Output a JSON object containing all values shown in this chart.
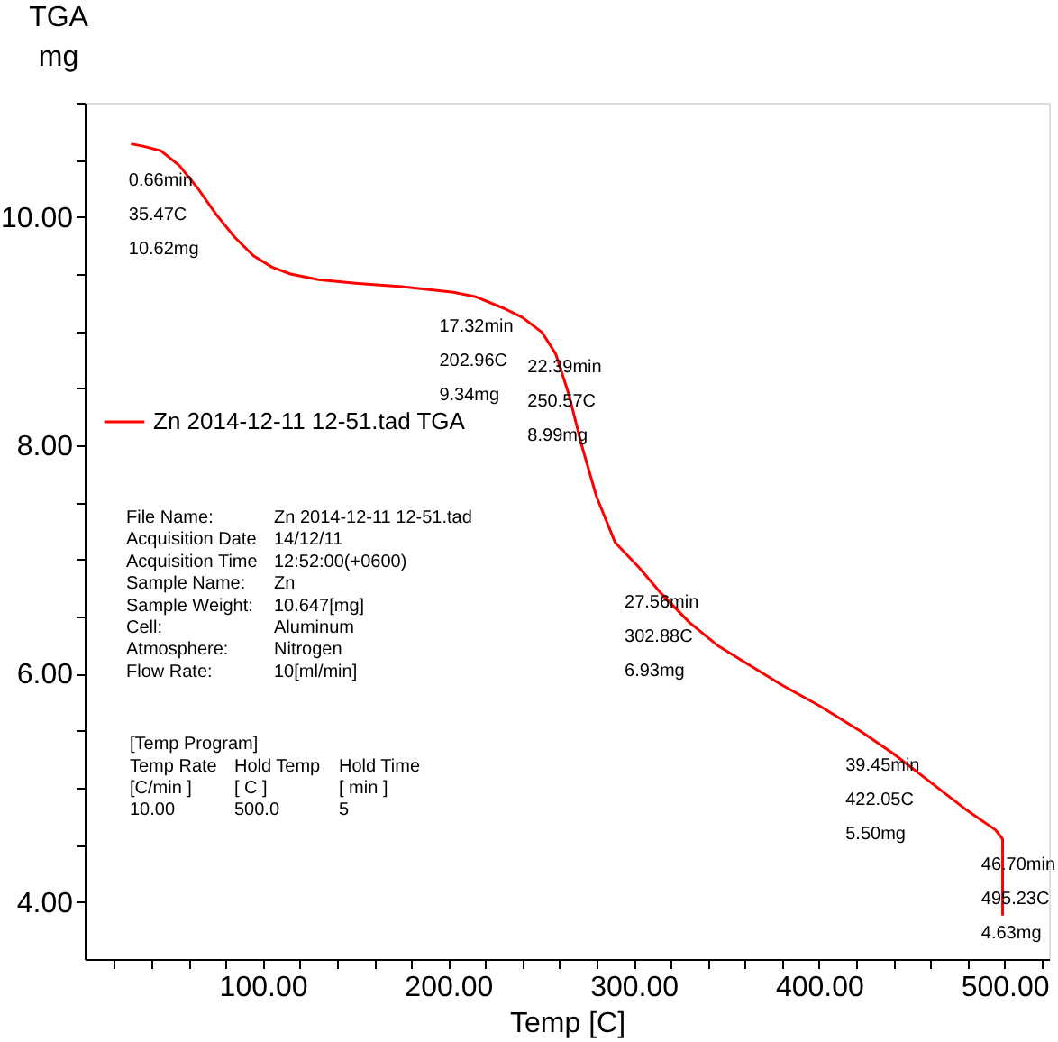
{
  "chart_data": {
    "type": "line",
    "xlabel": "Temp  [C]",
    "ylabel": "TGA\nmg",
    "xlim": [
      4,
      524
    ],
    "ylim": [
      3.5,
      11.0
    ],
    "xticks": [
      {
        "value": 20,
        "label": null
      },
      {
        "value": 40,
        "label": null
      },
      {
        "value": 60,
        "label": null
      },
      {
        "value": 80,
        "label": null
      },
      {
        "value": 100,
        "label": "100.00"
      },
      {
        "value": 120,
        "label": null
      },
      {
        "value": 140,
        "label": null
      },
      {
        "value": 160,
        "label": null
      },
      {
        "value": 180,
        "label": null
      },
      {
        "value": 200,
        "label": "200.00"
      },
      {
        "value": 220,
        "label": null
      },
      {
        "value": 240,
        "label": null
      },
      {
        "value": 260,
        "label": null
      },
      {
        "value": 280,
        "label": null
      },
      {
        "value": 300,
        "label": "300.00"
      },
      {
        "value": 320,
        "label": null
      },
      {
        "value": 340,
        "label": null
      },
      {
        "value": 360,
        "label": null
      },
      {
        "value": 380,
        "label": null
      },
      {
        "value": 400,
        "label": "400.00"
      },
      {
        "value": 420,
        "label": null
      },
      {
        "value": 440,
        "label": null
      },
      {
        "value": 460,
        "label": null
      },
      {
        "value": 480,
        "label": null
      },
      {
        "value": 500,
        "label": "500.00"
      },
      {
        "value": 520,
        "label": null
      }
    ],
    "yticks": [
      {
        "value": 4,
        "label": "4.00"
      },
      {
        "value": 4.5,
        "label": null
      },
      {
        "value": 5,
        "label": null
      },
      {
        "value": 5.5,
        "label": null
      },
      {
        "value": 6,
        "label": "6.00"
      },
      {
        "value": 6.5,
        "label": null
      },
      {
        "value": 7,
        "label": null
      },
      {
        "value": 7.5,
        "label": null
      },
      {
        "value": 8,
        "label": "8.00"
      },
      {
        "value": 8.5,
        "label": null
      },
      {
        "value": 9,
        "label": null
      },
      {
        "value": 9.5,
        "label": null
      },
      {
        "value": 10,
        "label": "10.00"
      },
      {
        "value": 10.5,
        "label": null
      },
      {
        "value": 11,
        "label": null
      }
    ],
    "grid": false,
    "legend": "left",
    "marker": "none",
    "line_style": "solid",
    "series": [
      {
        "name": "Zn 2014-12-11 12-51.tad  TGA",
        "color": "#ff0000",
        "x": [
          29,
          35.47,
          45,
          55,
          65,
          75,
          85,
          95,
          105,
          115,
          130,
          150,
          175,
          202.96,
          215,
          230,
          240,
          250.57,
          258,
          265,
          272,
          280,
          290,
          302.88,
          315,
          330,
          345,
          360,
          380,
          400,
          422.05,
          440,
          460,
          480,
          495.23,
          499,
          499
        ],
        "values": [
          10.64,
          10.62,
          10.58,
          10.45,
          10.25,
          10.02,
          9.82,
          9.66,
          9.56,
          9.5,
          9.45,
          9.42,
          9.39,
          9.34,
          9.3,
          9.2,
          9.12,
          8.99,
          8.8,
          8.45,
          8.0,
          7.55,
          7.15,
          6.93,
          6.7,
          6.45,
          6.25,
          6.1,
          5.9,
          5.72,
          5.5,
          5.3,
          5.05,
          4.8,
          4.63,
          4.55,
          3.88
        ]
      }
    ],
    "annotations": [
      {
        "text": "0.66min\n35.47C\n10.62mg",
        "x": 35.47,
        "y": 10.62
      },
      {
        "text": "17.32min\n202.96C\n9.34mg",
        "x": 202.96,
        "y": 9.34
      },
      {
        "text": "22.39min\n250.57C\n8.99mg",
        "x": 250.57,
        "y": 8.99
      },
      {
        "text": "27.56min\n302.88C\n6.93mg",
        "x": 302.88,
        "y": 6.93
      },
      {
        "text": "39.45min\n422.05C\n5.50mg",
        "x": 422.05,
        "y": 5.5
      },
      {
        "text": "46.70min\n495.23C\n4.63mg",
        "x": 495.23,
        "y": 4.63
      },
      "File Name:\tZn 2014-12-11 12-51.tad",
      "Acquisition Date\t14/12/11",
      "Acquisition Time\t12:52:00(+0600)",
      "Sample Name:\tZn",
      "Sample Weight:\t10.647[mg]",
      "Cell:\tAluminum",
      "Atmosphere:\tNitrogen",
      "Flow Rate:\t10[ml/min]",
      "[Temp Program]",
      "Temp Rate\tHold Temp\tHold Time",
      "[C/min ]\t[ C  ]\t[  min  ]",
      "10.00\t500.0\t5"
    ]
  }
}
